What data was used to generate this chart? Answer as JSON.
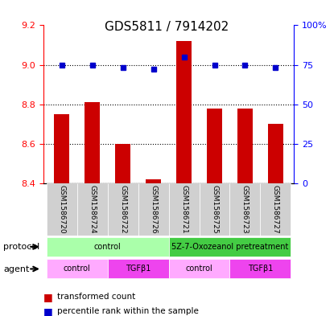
{
  "title": "GDS5811 / 7914202",
  "samples": [
    "GSM1586720",
    "GSM1586724",
    "GSM1586722",
    "GSM1586726",
    "GSM1586721",
    "GSM1586725",
    "GSM1586723",
    "GSM1586727"
  ],
  "bar_values": [
    8.75,
    8.81,
    8.6,
    8.42,
    9.12,
    8.78,
    8.78,
    8.7
  ],
  "dot_values": [
    75,
    75,
    73,
    72,
    80,
    75,
    75,
    73
  ],
  "ylim_left": [
    8.4,
    9.2
  ],
  "ylim_right": [
    0,
    100
  ],
  "yticks_left": [
    8.4,
    8.6,
    8.8,
    9.0,
    9.2
  ],
  "yticks_right": [
    0,
    25,
    50,
    75,
    100
  ],
  "bar_color": "#cc0000",
  "dot_color": "#0000cc",
  "grid_color": "#000000",
  "protocol_groups": [
    {
      "label": "control",
      "start": 0,
      "end": 4,
      "color": "#aaffaa"
    },
    {
      "label": "5Z-7-Oxozeanol pretreatment",
      "start": 4,
      "end": 8,
      "color": "#44cc44"
    }
  ],
  "agent_groups": [
    {
      "label": "control",
      "start": 0,
      "end": 2,
      "color": "#ffaaff"
    },
    {
      "label": "TGFβ1",
      "start": 2,
      "end": 4,
      "color": "#ee44ee"
    },
    {
      "label": "control",
      "start": 4,
      "end": 6,
      "color": "#ffaaff"
    },
    {
      "label": "TGFβ1",
      "start": 6,
      "end": 8,
      "color": "#ee44ee"
    }
  ],
  "xlabel_protocol": "protocol",
  "xlabel_agent": "agent",
  "legend_red": "transformed count",
  "legend_blue": "percentile rank within the sample",
  "bg_color": "#e8e8e8",
  "plot_bg": "#ffffff"
}
